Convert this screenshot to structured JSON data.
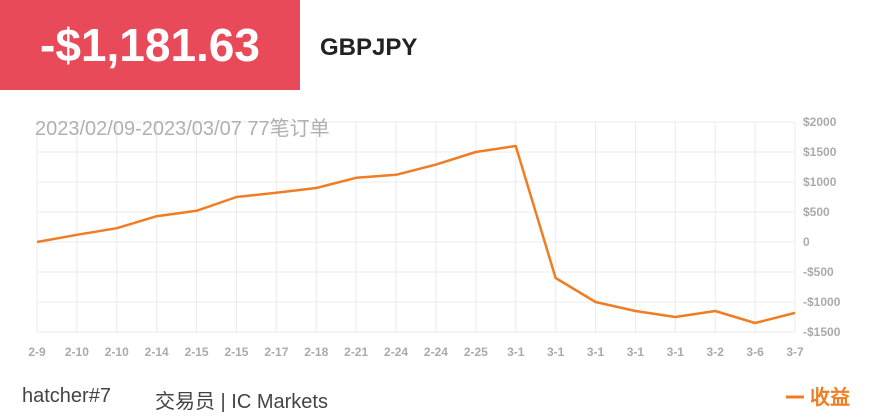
{
  "header": {
    "amount": "-$1,181.63",
    "symbol": "GBPJPY"
  },
  "chart_data": {
    "type": "line",
    "subtitle": "2023/02/09-2023/03/07 77笔订单",
    "categories": [
      "2-9",
      "2-10",
      "2-10",
      "2-14",
      "2-15",
      "2-15",
      "2-17",
      "2-18",
      "2-21",
      "2-24",
      "2-24",
      "2-25",
      "3-1",
      "3-1",
      "3-1",
      "3-1",
      "3-1",
      "3-2",
      "3-6",
      "3-7"
    ],
    "series": [
      {
        "name": "收益",
        "color": "#f07c24",
        "values": [
          0,
          120,
          230,
          430,
          520,
          750,
          820,
          900,
          1070,
          1120,
          1290,
          1500,
          1600,
          -600,
          -1000,
          -1150,
          -1250,
          -1150,
          -1350,
          -1181.63
        ]
      }
    ],
    "ylim": [
      -1500,
      2000
    ],
    "yticks": [
      {
        "value": -1500,
        "label": "-$1500"
      },
      {
        "value": -1000,
        "label": "-$1000"
      },
      {
        "value": -500,
        "label": "-$500"
      },
      0,
      {
        "value": 500,
        "label": "$500"
      },
      {
        "value": 1000,
        "label": "$1000"
      },
      {
        "value": 1500,
        "label": "$1500"
      },
      {
        "value": 2000,
        "label": "$2000"
      }
    ],
    "grid": true
  },
  "footer": {
    "trader": "hatcher#7",
    "role": "交易员 | IC Markets"
  }
}
